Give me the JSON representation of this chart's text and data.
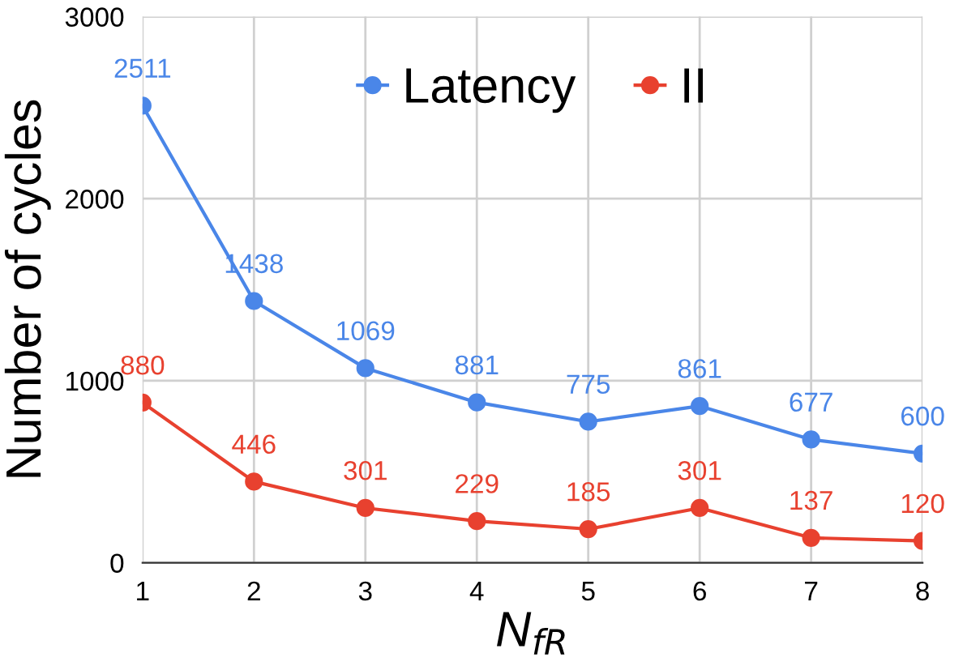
{
  "chart_data": {
    "type": "line",
    "xlabel": "N$_{fR}$",
    "ylabel": "Number of cycles",
    "x": [
      1,
      2,
      3,
      4,
      5,
      6,
      7,
      8
    ],
    "series": [
      {
        "name": "Latency",
        "color": "#4a86e8",
        "values": [
          2511,
          1438,
          1069,
          881,
          775,
          861,
          677,
          600
        ]
      },
      {
        "name": "II",
        "color": "#e8412f",
        "values": [
          880,
          446,
          301,
          229,
          185,
          301,
          137,
          120
        ]
      }
    ],
    "xlim": [
      1,
      8
    ],
    "xticks": [
      1,
      2,
      3,
      4,
      5,
      6,
      7,
      8
    ],
    "ylim": [
      0,
      3000
    ],
    "yticks": [
      0,
      1000,
      2000,
      3000
    ],
    "grid": true,
    "legend": "top",
    "marker": "circle",
    "line_style": "solid",
    "data_labels": true
  }
}
